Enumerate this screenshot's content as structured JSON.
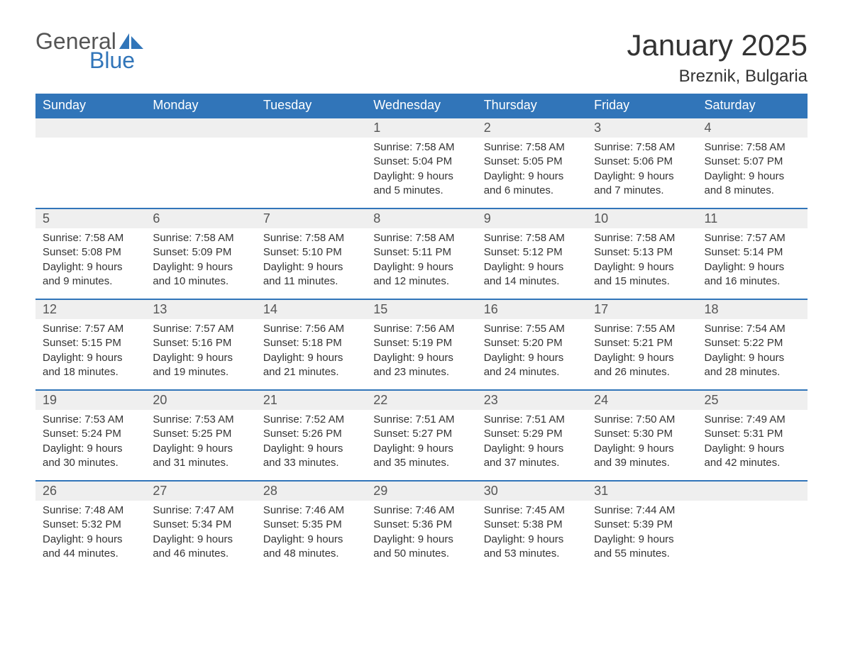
{
  "logo": {
    "text_general": "General",
    "text_blue": "Blue",
    "sail_color": "#3175b9"
  },
  "header": {
    "month_title": "January 2025",
    "location": "Breznik, Bulgaria"
  },
  "colors": {
    "header_bg": "#3175b9",
    "header_text": "#ffffff",
    "daynum_bg": "#efefef",
    "row_border": "#3175b9",
    "body_text": "#333333",
    "page_bg": "#ffffff"
  },
  "typography": {
    "month_title_fontsize": 42,
    "location_fontsize": 24,
    "weekday_fontsize": 18,
    "daynum_fontsize": 18,
    "body_fontsize": 15
  },
  "weekdays": [
    "Sunday",
    "Monday",
    "Tuesday",
    "Wednesday",
    "Thursday",
    "Friday",
    "Saturday"
  ],
  "weeks": [
    [
      null,
      null,
      null,
      {
        "num": "1",
        "sunrise": "Sunrise: 7:58 AM",
        "sunset": "Sunset: 5:04 PM",
        "day1": "Daylight: 9 hours",
        "day2": "and 5 minutes."
      },
      {
        "num": "2",
        "sunrise": "Sunrise: 7:58 AM",
        "sunset": "Sunset: 5:05 PM",
        "day1": "Daylight: 9 hours",
        "day2": "and 6 minutes."
      },
      {
        "num": "3",
        "sunrise": "Sunrise: 7:58 AM",
        "sunset": "Sunset: 5:06 PM",
        "day1": "Daylight: 9 hours",
        "day2": "and 7 minutes."
      },
      {
        "num": "4",
        "sunrise": "Sunrise: 7:58 AM",
        "sunset": "Sunset: 5:07 PM",
        "day1": "Daylight: 9 hours",
        "day2": "and 8 minutes."
      }
    ],
    [
      {
        "num": "5",
        "sunrise": "Sunrise: 7:58 AM",
        "sunset": "Sunset: 5:08 PM",
        "day1": "Daylight: 9 hours",
        "day2": "and 9 minutes."
      },
      {
        "num": "6",
        "sunrise": "Sunrise: 7:58 AM",
        "sunset": "Sunset: 5:09 PM",
        "day1": "Daylight: 9 hours",
        "day2": "and 10 minutes."
      },
      {
        "num": "7",
        "sunrise": "Sunrise: 7:58 AM",
        "sunset": "Sunset: 5:10 PM",
        "day1": "Daylight: 9 hours",
        "day2": "and 11 minutes."
      },
      {
        "num": "8",
        "sunrise": "Sunrise: 7:58 AM",
        "sunset": "Sunset: 5:11 PM",
        "day1": "Daylight: 9 hours",
        "day2": "and 12 minutes."
      },
      {
        "num": "9",
        "sunrise": "Sunrise: 7:58 AM",
        "sunset": "Sunset: 5:12 PM",
        "day1": "Daylight: 9 hours",
        "day2": "and 14 minutes."
      },
      {
        "num": "10",
        "sunrise": "Sunrise: 7:58 AM",
        "sunset": "Sunset: 5:13 PM",
        "day1": "Daylight: 9 hours",
        "day2": "and 15 minutes."
      },
      {
        "num": "11",
        "sunrise": "Sunrise: 7:57 AM",
        "sunset": "Sunset: 5:14 PM",
        "day1": "Daylight: 9 hours",
        "day2": "and 16 minutes."
      }
    ],
    [
      {
        "num": "12",
        "sunrise": "Sunrise: 7:57 AM",
        "sunset": "Sunset: 5:15 PM",
        "day1": "Daylight: 9 hours",
        "day2": "and 18 minutes."
      },
      {
        "num": "13",
        "sunrise": "Sunrise: 7:57 AM",
        "sunset": "Sunset: 5:16 PM",
        "day1": "Daylight: 9 hours",
        "day2": "and 19 minutes."
      },
      {
        "num": "14",
        "sunrise": "Sunrise: 7:56 AM",
        "sunset": "Sunset: 5:18 PM",
        "day1": "Daylight: 9 hours",
        "day2": "and 21 minutes."
      },
      {
        "num": "15",
        "sunrise": "Sunrise: 7:56 AM",
        "sunset": "Sunset: 5:19 PM",
        "day1": "Daylight: 9 hours",
        "day2": "and 23 minutes."
      },
      {
        "num": "16",
        "sunrise": "Sunrise: 7:55 AM",
        "sunset": "Sunset: 5:20 PM",
        "day1": "Daylight: 9 hours",
        "day2": "and 24 minutes."
      },
      {
        "num": "17",
        "sunrise": "Sunrise: 7:55 AM",
        "sunset": "Sunset: 5:21 PM",
        "day1": "Daylight: 9 hours",
        "day2": "and 26 minutes."
      },
      {
        "num": "18",
        "sunrise": "Sunrise: 7:54 AM",
        "sunset": "Sunset: 5:22 PM",
        "day1": "Daylight: 9 hours",
        "day2": "and 28 minutes."
      }
    ],
    [
      {
        "num": "19",
        "sunrise": "Sunrise: 7:53 AM",
        "sunset": "Sunset: 5:24 PM",
        "day1": "Daylight: 9 hours",
        "day2": "and 30 minutes."
      },
      {
        "num": "20",
        "sunrise": "Sunrise: 7:53 AM",
        "sunset": "Sunset: 5:25 PM",
        "day1": "Daylight: 9 hours",
        "day2": "and 31 minutes."
      },
      {
        "num": "21",
        "sunrise": "Sunrise: 7:52 AM",
        "sunset": "Sunset: 5:26 PM",
        "day1": "Daylight: 9 hours",
        "day2": "and 33 minutes."
      },
      {
        "num": "22",
        "sunrise": "Sunrise: 7:51 AM",
        "sunset": "Sunset: 5:27 PM",
        "day1": "Daylight: 9 hours",
        "day2": "and 35 minutes."
      },
      {
        "num": "23",
        "sunrise": "Sunrise: 7:51 AM",
        "sunset": "Sunset: 5:29 PM",
        "day1": "Daylight: 9 hours",
        "day2": "and 37 minutes."
      },
      {
        "num": "24",
        "sunrise": "Sunrise: 7:50 AM",
        "sunset": "Sunset: 5:30 PM",
        "day1": "Daylight: 9 hours",
        "day2": "and 39 minutes."
      },
      {
        "num": "25",
        "sunrise": "Sunrise: 7:49 AM",
        "sunset": "Sunset: 5:31 PM",
        "day1": "Daylight: 9 hours",
        "day2": "and 42 minutes."
      }
    ],
    [
      {
        "num": "26",
        "sunrise": "Sunrise: 7:48 AM",
        "sunset": "Sunset: 5:32 PM",
        "day1": "Daylight: 9 hours",
        "day2": "and 44 minutes."
      },
      {
        "num": "27",
        "sunrise": "Sunrise: 7:47 AM",
        "sunset": "Sunset: 5:34 PM",
        "day1": "Daylight: 9 hours",
        "day2": "and 46 minutes."
      },
      {
        "num": "28",
        "sunrise": "Sunrise: 7:46 AM",
        "sunset": "Sunset: 5:35 PM",
        "day1": "Daylight: 9 hours",
        "day2": "and 48 minutes."
      },
      {
        "num": "29",
        "sunrise": "Sunrise: 7:46 AM",
        "sunset": "Sunset: 5:36 PM",
        "day1": "Daylight: 9 hours",
        "day2": "and 50 minutes."
      },
      {
        "num": "30",
        "sunrise": "Sunrise: 7:45 AM",
        "sunset": "Sunset: 5:38 PM",
        "day1": "Daylight: 9 hours",
        "day2": "and 53 minutes."
      },
      {
        "num": "31",
        "sunrise": "Sunrise: 7:44 AM",
        "sunset": "Sunset: 5:39 PM",
        "day1": "Daylight: 9 hours",
        "day2": "and 55 minutes."
      },
      null
    ]
  ]
}
